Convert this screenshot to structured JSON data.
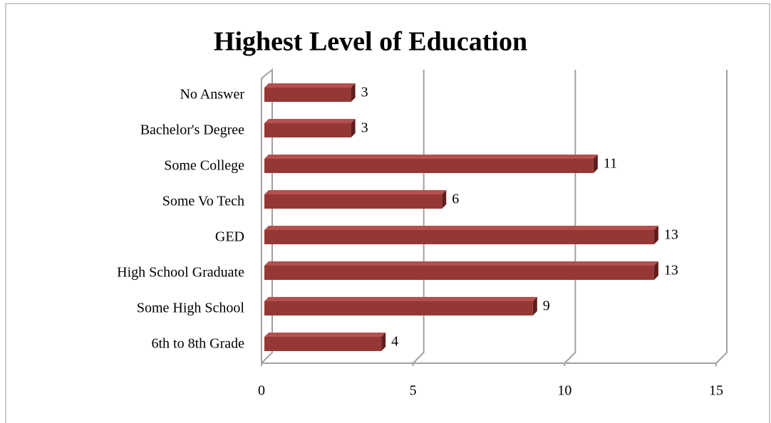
{
  "chart_data": {
    "type": "bar3d",
    "orientation": "horizontal",
    "title": "Highest Level of Education",
    "categories": [
      "No Answer",
      "Bachelor's Degree",
      "Some College",
      "Some Vo Tech",
      "GED",
      "High School Graduate",
      "Some High School",
      "6th to 8th Grade"
    ],
    "values": [
      3,
      3,
      11,
      6,
      13,
      13,
      9,
      4
    ],
    "color": "#953735",
    "xlim": [
      0,
      15
    ],
    "xticks": [
      0,
      5,
      10,
      15
    ],
    "grid": true
  }
}
